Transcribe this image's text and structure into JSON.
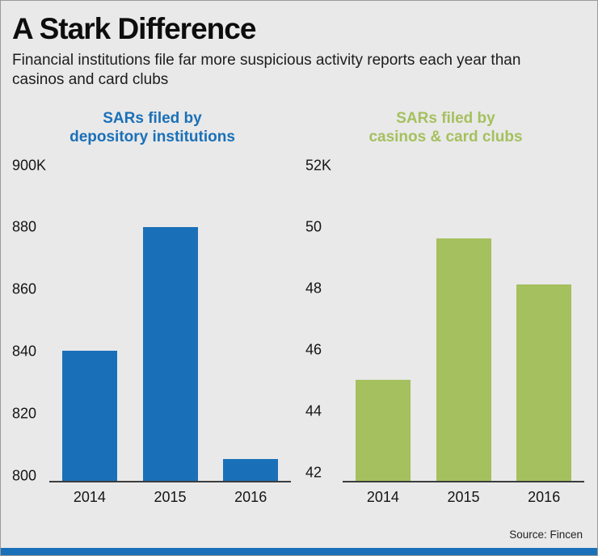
{
  "page": {
    "title": "A Stark Difference",
    "subtitle": "Financial institutions file far more suspicious activity reports each year than casinos and card clubs",
    "source": "Source: Fincen"
  },
  "colors": {
    "background": "#e9e9e9",
    "accent_blue": "#1a70b8",
    "accent_green": "#a5c05e",
    "footer_bar": "#1a70b8"
  },
  "chart_data": [
    {
      "type": "bar",
      "title": "SARs filed by depository institutions",
      "title_lines": [
        "SARs filed by",
        "depository institutions"
      ],
      "title_color": "#1a70b8",
      "bar_color": "#1a70b8",
      "categories": [
        "2014",
        "2015",
        "2016"
      ],
      "values": [
        840,
        880,
        805
      ],
      "top_label": "900K",
      "yticks": [
        880,
        860,
        840,
        820,
        800
      ],
      "ylim": [
        798,
        900
      ],
      "unit": "thousands of SARs",
      "legend": "none",
      "grid": "off"
    },
    {
      "type": "bar",
      "title": "SARs filed by casinos & card clubs",
      "title_lines": [
        "SARs filed by",
        "casinos & card clubs"
      ],
      "title_color": "#a5c05e",
      "bar_color": "#a5c05e",
      "categories": [
        "2014",
        "2015",
        "2016"
      ],
      "values": [
        45,
        49.6,
        48.1
      ],
      "top_label": "52K",
      "yticks": [
        50,
        48,
        46,
        44,
        42
      ],
      "ylim": [
        41.7,
        52
      ],
      "unit": "thousands of SARs",
      "legend": "none",
      "grid": "off"
    }
  ]
}
